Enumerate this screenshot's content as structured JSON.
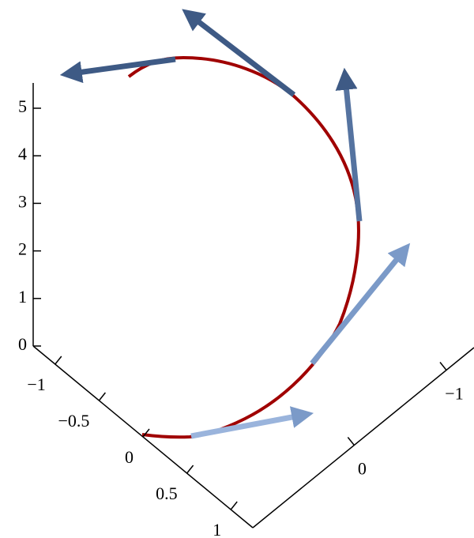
{
  "chart_data": {
    "type": "space-curve",
    "zticks": [
      0,
      1,
      2,
      3,
      4,
      5
    ],
    "zlim": [
      0,
      5
    ],
    "xticks": [
      {
        "value": -1,
        "label": "−1"
      },
      {
        "value": -0.5,
        "label": "−0.5"
      },
      0,
      0.5,
      1
    ],
    "xlim": [
      -1.25,
      1.25
    ],
    "yticks": [
      {
        "value": -1,
        "label": "−1"
      },
      0
    ],
    "ylim": [
      1.1,
      -1.3
    ]
  }
}
